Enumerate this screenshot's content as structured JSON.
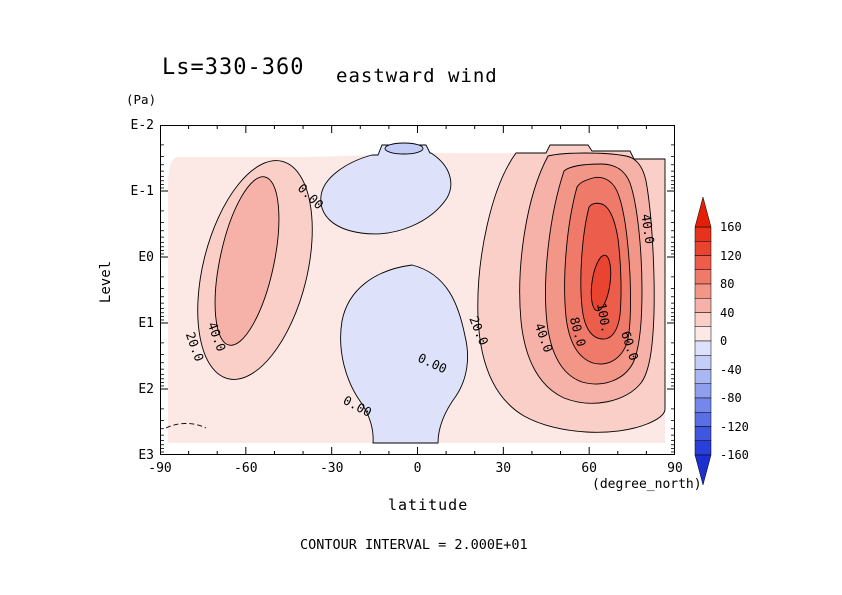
{
  "header": {
    "title_ls": "Ls=330-360",
    "title_var": "eastward wind"
  },
  "axes": {
    "y": {
      "unit_label": "(Pa)",
      "axis_label": "Level",
      "tick_labels": [
        "E-2",
        "E-1",
        "E0",
        "E1",
        "E2",
        "E3"
      ]
    },
    "x": {
      "axis_label": "latitude",
      "unit_label": "(degree_north)",
      "tick_labels": [
        "-90",
        "-60",
        "-30",
        "0",
        "30",
        "60",
        "90"
      ]
    }
  },
  "plot": {
    "contour_labels": [
      "0.00",
      "40.0",
      "20.0",
      "40.0",
      "20.0",
      "40.0",
      "80.0",
      "100.",
      "60.0",
      "0.00",
      "0.00"
    ]
  },
  "colorbar": {
    "tick_labels": [
      "160",
      "120",
      "80",
      "40",
      "0",
      "-40",
      "-80",
      "-120",
      "-160"
    ],
    "segment_colors": [
      "#e7331d",
      "#e94430",
      "#ec5e4b",
      "#ef7a69",
      "#f29688",
      "#f6b2a8",
      "#f9cfc8",
      "#fce9e6",
      "#dde2fa",
      "#c3cdf6",
      "#a9b6f2",
      "#8f9fee",
      "#7587ea",
      "#5b6fe5",
      "#4156e0",
      "#2a3fd9"
    ],
    "arrow_top_color": "#e41f08",
    "arrow_bottom_color": "#1c2fd0"
  },
  "footer": {
    "contour_interval": "CONTOUR INTERVAL = 2.000E+01"
  },
  "chart_data": {
    "type": "filled_contour",
    "title": "eastward wind",
    "subtitle": "Ls=330-360",
    "xlabel": "latitude",
    "x_unit": "degree_north",
    "xlim": [
      -90,
      90
    ],
    "x_major_tick_step": 30,
    "x_minor_tick_step": 10,
    "ylabel": "Level",
    "y_unit": "Pa",
    "y_scale": "log_pressure_descending",
    "y_ticks": [
      "1e-2",
      "1e-1",
      "1e0",
      "1e1",
      "1e2",
      "1e3"
    ],
    "contour_interval": 20,
    "labeled_contour_values": [
      0,
      20,
      40,
      60,
      80,
      100
    ],
    "colorbar_ticks": [
      160,
      120,
      80,
      40,
      0,
      -40,
      -80,
      -120,
      -160
    ],
    "grid": false,
    "legend_position": "right_colorbar",
    "features": [
      {
        "name": "northern_hemisphere_jet",
        "sign": "eastward",
        "center_latitude": 60,
        "center_level_pa": 3,
        "approx_max": 130
      },
      {
        "name": "southern_hemisphere_jet",
        "sign": "eastward",
        "center_latitude": -60,
        "center_level_pa": 1,
        "approx_max": 55
      },
      {
        "name": "equatorial_westward_region_lower",
        "sign": "westward",
        "latitude_range": [
          -35,
          25
        ],
        "level_range_pa": [
          1,
          700
        ],
        "approx_min": -15
      },
      {
        "name": "equatorial_westward_region_upper",
        "sign": "westward",
        "latitude_range": [
          -30,
          10
        ],
        "level_range_pa": [
          0.02,
          0.3
        ],
        "approx_min": -25
      }
    ]
  }
}
